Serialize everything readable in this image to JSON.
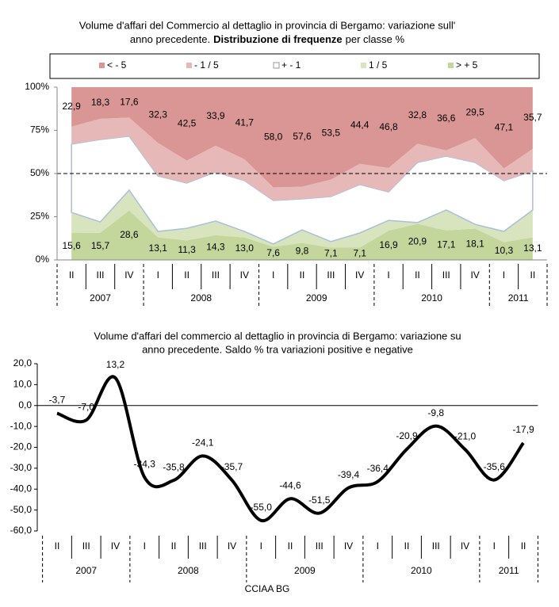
{
  "chart_data": [
    {
      "type": "area",
      "stacked": true,
      "title": [
        "Volume d'affari del Commercio  al dettaglio  in provincia di Bergamo:  variazione  sull'",
        "anno precedente.",
        "Distribuzione di frequenze",
        "per classe  %"
      ],
      "groups": [
        {
          "label": "2007",
          "categories": [
            "II",
            "III",
            "IV"
          ]
        },
        {
          "label": "2008",
          "categories": [
            "I",
            "II",
            "III",
            "IV"
          ]
        },
        {
          "label": "2009",
          "categories": [
            "I",
            "II",
            "III",
            "IV"
          ]
        },
        {
          "label": "2010",
          "categories": [
            "I",
            "II",
            "III",
            "IV"
          ]
        },
        {
          "label": "2011",
          "categories": [
            "I",
            "II"
          ]
        }
      ],
      "series": [
        {
          "name": "< - 5",
          "color": "#d99694",
          "values": [
            22.9,
            18.3,
            17.6,
            32.3,
            42.5,
            33.9,
            41.7,
            58.0,
            57.6,
            53.5,
            44.4,
            46.8,
            32.8,
            36.6,
            29.5,
            47.1,
            35.7
          ],
          "value_labels": [
            "22,9",
            "18,3",
            "17,6",
            "32,3",
            "42,5",
            "33,9",
            "41,7",
            "58,0",
            "57,6",
            "53,5",
            "44,4",
            "46,8",
            "32,8",
            "36,6",
            "29,5",
            "47,1",
            "35,7"
          ]
        },
        {
          "name": "- 1 / 5",
          "color": "#e6b9b8",
          "values": [
            10.1,
            12.0,
            10.8,
            19.1,
            13.0,
            15.2,
            12.4,
            7.6,
            7.1,
            9.8,
            12.0,
            13.8,
            10.8,
            3.3,
            14.1,
            7.0,
            12.9
          ]
        },
        {
          "name": "+ - 1",
          "color": "#ffffff",
          "values": [
            39.5,
            47.7,
            31.2,
            32.1,
            26.2,
            28.4,
            29.4,
            25.2,
            17.9,
            26.1,
            28.0,
            16.5,
            34.8,
            31.2,
            35.8,
            29.4,
            22.5
          ]
        },
        {
          "name": "1 / 5",
          "color": "#d7e4bd",
          "values": [
            11.9,
            6.3,
            11.8,
            3.4,
            7.0,
            8.2,
            3.5,
            1.6,
            7.6,
            3.5,
            8.5,
            6.0,
            0.7,
            11.8,
            2.5,
            6.2,
            15.8
          ]
        },
        {
          "name": "> + 5",
          "color": "#c3d69b",
          "values": [
            15.6,
            15.7,
            28.6,
            13.1,
            11.3,
            14.3,
            13.0,
            7.6,
            9.8,
            7.1,
            7.1,
            16.9,
            20.9,
            17.1,
            18.1,
            10.3,
            13.1
          ],
          "value_labels": [
            "15,6",
            "15,7",
            "28,6",
            "13,1",
            "11,3",
            "14,3",
            "13,0",
            "7,6",
            "9,8",
            "7,1",
            "7,1",
            "16,9",
            "20,9",
            "17,1",
            "18,1",
            "10,3",
            "13,1"
          ]
        }
      ],
      "ylim": [
        0,
        100
      ],
      "yticks": [
        {
          "value": 0,
          "label": "0%"
        },
        {
          "value": 25,
          "label": "25%"
        },
        {
          "value": 50,
          "label": "50%"
        },
        {
          "value": 75,
          "label": "75%"
        },
        {
          "value": 100,
          "label": "100%"
        }
      ],
      "reference_line": 50,
      "legend": "top"
    },
    {
      "type": "line",
      "title": [
        "Volume d'affari del commercio al dettaglio  in provincia di Bergamo: variazione su",
        "anno precedente. Saldo % tra variazioni positive e negative"
      ],
      "groups": [
        {
          "label": "2007",
          "categories": [
            "II",
            "III",
            "IV"
          ]
        },
        {
          "label": "2008",
          "categories": [
            "I",
            "II",
            "III",
            "IV"
          ]
        },
        {
          "label": "2009",
          "categories": [
            "I",
            "II",
            "III",
            "IV"
          ]
        },
        {
          "label": "2010",
          "categories": [
            "I",
            "II",
            "III",
            "IV"
          ]
        },
        {
          "label": "2011",
          "categories": [
            "I",
            "II"
          ]
        }
      ],
      "values": [
        -3.7,
        -7.0,
        13.2,
        -34.3,
        -35.8,
        -24.1,
        -35.7,
        -55.0,
        -44.6,
        -51.5,
        -39.4,
        -36.4,
        -20.9,
        -9.8,
        -21.0,
        -35.6,
        -17.9
      ],
      "value_labels": [
        "-3,7",
        "-7,0",
        "13,2",
        "-34,3",
        "-35,8",
        "-24,1",
        "-35,7",
        "-55,0",
        "-44,6",
        "-51,5",
        "-39,4",
        "-36,4",
        "-20,9",
        "-9,8",
        "-21,0",
        "-35,6",
        "-17,9"
      ],
      "color": "#000000",
      "ylim": [
        -60,
        20
      ],
      "yticks": [
        {
          "value": -60,
          "label": "-60,0"
        },
        {
          "value": -50,
          "label": "-50,0"
        },
        {
          "value": -40,
          "label": "-40,0"
        },
        {
          "value": -30,
          "label": "-30,0"
        },
        {
          "value": -20,
          "label": "-20,0"
        },
        {
          "value": -10,
          "label": "-10,0"
        },
        {
          "value": 0,
          "label": "0,0"
        },
        {
          "value": 10,
          "label": "10,0"
        },
        {
          "value": 20,
          "label": "20,0"
        }
      ],
      "source": "CCIAA BG"
    }
  ]
}
